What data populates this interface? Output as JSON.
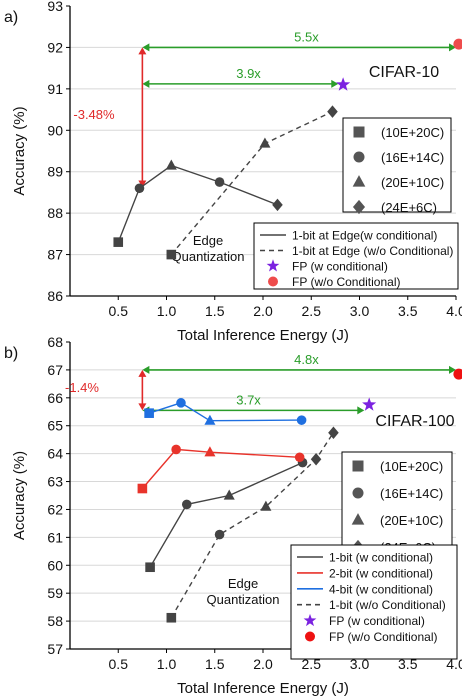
{
  "chart_data": [
    {
      "panel_label": "a)",
      "type": "line",
      "title": "CIFAR-10",
      "xlabel": "Total Inference Energy (J)",
      "ylabel": "Accuracy (%)",
      "xlim": [
        0,
        4.0
      ],
      "ylim": [
        86,
        93
      ],
      "xticks": [
        "0.5",
        "1.0",
        "1.5",
        "2.0",
        "2.5",
        "3.0",
        "3.5",
        "4.0"
      ],
      "xtick_values": [
        0.5,
        1.0,
        1.5,
        2.0,
        2.5,
        3.0,
        3.5,
        4.0
      ],
      "yticks": [
        "86",
        "87",
        "88",
        "89",
        "90",
        "91",
        "92",
        "93"
      ],
      "ytick_values": [
        86,
        87,
        88,
        89,
        90,
        91,
        92,
        93
      ],
      "grid": true,
      "series": [
        {
          "name": "1-bit at Edge(w conditional)",
          "color": "#444444",
          "style": "solid",
          "points": [
            [
              0.5,
              87.3
            ],
            [
              0.72,
              88.6
            ],
            [
              1.05,
              89.15
            ],
            [
              1.55,
              88.75
            ],
            [
              2.15,
              88.2
            ]
          ],
          "markers": [
            "square",
            "circle",
            "triangle",
            "circle",
            "diamond"
          ]
        },
        {
          "name": "1-bit at Edge (w/o Conditional)",
          "color": "#444444",
          "style": "dashed",
          "points": [
            [
              1.05,
              87.0
            ],
            [
              2.02,
              89.68
            ],
            [
              2.72,
              90.45
            ]
          ],
          "markers": [
            "square",
            "triangle",
            "diamond"
          ]
        },
        {
          "name": "FP (w conditional)",
          "color": "#7b22e0",
          "style": "none",
          "points": [
            [
              2.83,
              91.1
            ]
          ],
          "markers": [
            "star"
          ]
        },
        {
          "name": "FP (w/o Conditional)",
          "color": "#ee4c4c",
          "style": "none",
          "points": [
            [
              4.03,
              92.08
            ]
          ],
          "markers": [
            "circle"
          ]
        }
      ],
      "marker_legend": [
        "(10E+20C)",
        "(16E+14C)",
        "(20E+10C)",
        "(24E+6C)"
      ],
      "annotations": {
        "ratio_top": "5.5x",
        "ratio_mid": "3.9x",
        "drop": "-3.48%",
        "edge": [
          "Edge",
          "Quantization"
        ]
      }
    },
    {
      "panel_label": "b)",
      "type": "line",
      "title": "CIFAR-100",
      "xlabel": "Total Inference Energy (J)",
      "ylabel": "Accuracy (%)",
      "xlim": [
        0,
        4.0
      ],
      "ylim": [
        57,
        68
      ],
      "xticks": [
        "0.5",
        "1.0",
        "1.5",
        "2.0",
        "2.5",
        "3.0",
        "3.5",
        "4.0"
      ],
      "xtick_values": [
        0.5,
        1.0,
        1.5,
        2.0,
        2.5,
        3.0,
        3.5,
        4.0
      ],
      "yticks": [
        "57",
        "58",
        "59",
        "60",
        "61",
        "62",
        "63",
        "64",
        "65",
        "66",
        "67",
        "68"
      ],
      "ytick_values": [
        57,
        58,
        59,
        60,
        61,
        62,
        63,
        64,
        65,
        66,
        67,
        68
      ],
      "grid": true,
      "series": [
        {
          "name": "1-bit (w conditional)",
          "color": "#444444",
          "style": "solid",
          "points": [
            [
              0.83,
              59.93
            ],
            [
              1.21,
              62.18
            ],
            [
              1.65,
              62.5
            ],
            [
              2.41,
              63.68
            ]
          ],
          "markers": [
            "square",
            "circle",
            "triangle",
            "circle"
          ]
        },
        {
          "name": "2-bit (w conditional)",
          "color": "#e8332b",
          "style": "solid",
          "points": [
            [
              0.75,
              62.75
            ],
            [
              1.1,
              64.15
            ],
            [
              1.45,
              64.05
            ],
            [
              2.38,
              63.87
            ]
          ],
          "markers": [
            "square",
            "circle",
            "triangle",
            "circle"
          ]
        },
        {
          "name": "4-bit (w conditional)",
          "color": "#1f6fe0",
          "style": "solid",
          "points": [
            [
              0.82,
              65.45
            ],
            [
              1.15,
              65.82
            ],
            [
              1.45,
              65.18
            ],
            [
              2.4,
              65.2
            ]
          ],
          "markers": [
            "square",
            "circle",
            "triangle",
            "circle"
          ]
        },
        {
          "name": "1-bit  (w/o Conditional)",
          "color": "#444444",
          "style": "dashed",
          "points": [
            [
              1.05,
              58.12
            ],
            [
              1.55,
              61.1
            ],
            [
              2.03,
              62.1
            ],
            [
              2.55,
              63.8
            ],
            [
              2.73,
              64.75
            ]
          ],
          "markers": [
            "square",
            "circle",
            "triangle",
            "diamond",
            "diamond"
          ]
        },
        {
          "name": "FP (w conditional)",
          "color": "#7b22e0",
          "style": "none",
          "points": [
            [
              3.1,
              65.75
            ]
          ],
          "markers": [
            "star"
          ]
        },
        {
          "name": "FP (w/o Conditional)",
          "color": "#ee1111",
          "style": "none",
          "points": [
            [
              4.03,
              66.85
            ]
          ],
          "markers": [
            "circle"
          ]
        }
      ],
      "marker_legend": [
        "(10E+20C)",
        "(16E+14C)",
        "(20E+10C)",
        "(24E+6C)"
      ],
      "annotations": {
        "ratio_top": "4.8x",
        "ratio_mid": "3.7x",
        "drop": "-1.4%",
        "edge": [
          "Edge",
          "Quantization"
        ]
      }
    }
  ]
}
